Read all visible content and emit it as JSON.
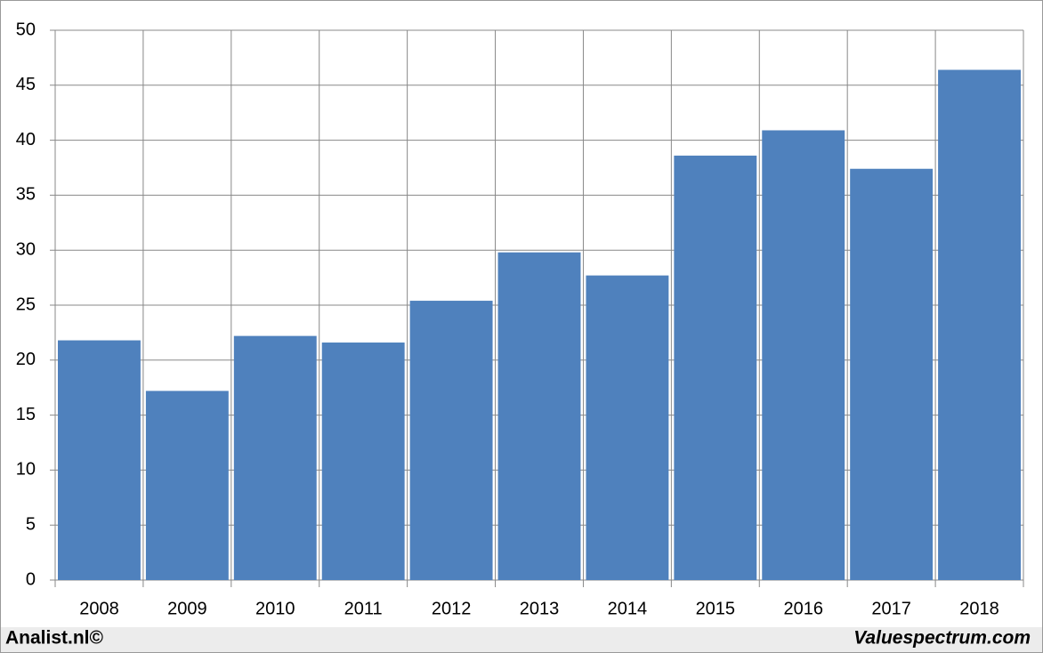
{
  "chart_data": {
    "type": "bar",
    "categories": [
      "2008",
      "2009",
      "2010",
      "2011",
      "2012",
      "2013",
      "2014",
      "2015",
      "2016",
      "2017",
      "2018"
    ],
    "values": [
      21.8,
      17.2,
      22.2,
      21.6,
      25.4,
      29.8,
      27.7,
      38.6,
      40.9,
      37.4,
      46.4
    ],
    "color": "#4f81bd",
    "ylim": [
      0,
      50
    ],
    "yticks": [
      0,
      5,
      10,
      15,
      20,
      25,
      30,
      35,
      40,
      45,
      50
    ],
    "grid": true
  },
  "footer": {
    "left": "Analist.nl©",
    "right": "Valuespectrum.com"
  }
}
